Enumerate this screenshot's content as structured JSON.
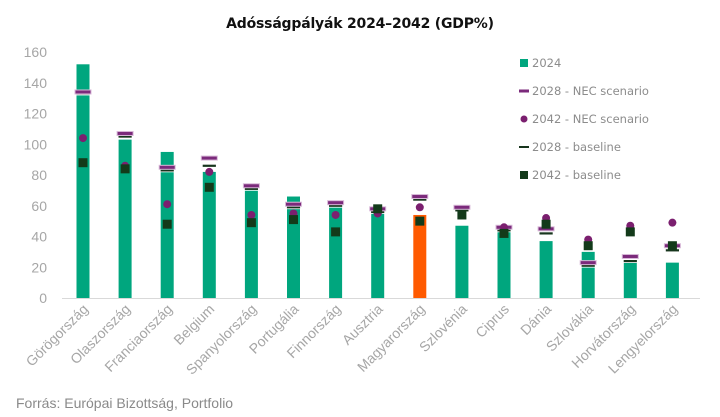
{
  "title": "Adósságpályák 2024–2042 (GDP%)",
  "source": "Forrás: Európai Bizottság, Portfolio",
  "chart_data": {
    "type": "bar",
    "title": "Adósságpályák 2024–2042 (GDP%)",
    "xlabel": "",
    "ylabel": "",
    "ylim": [
      0,
      160
    ],
    "yticks": [
      0,
      20,
      40,
      60,
      80,
      100,
      120,
      140,
      160
    ],
    "grid": false,
    "legend_position": "top-right",
    "categories": [
      "Görögország",
      "Olaszország",
      "Franciaország",
      "Belgium",
      "Spanyolország",
      "Portugália",
      "Finnország",
      "Ausztria",
      "Magyarország",
      "Szlovénia",
      "Ciprus",
      "Dánia",
      "Szlovákia",
      "Horvátország",
      "Lengyelország"
    ],
    "highlight_category": "Magyarország",
    "colors": {
      "bar": "#00a67e",
      "highlight_bar": "#ff5a00",
      "nec_2028": "#7b2a7b",
      "nec_2042": "#7b1f6f",
      "baseline_2028": "#17351d",
      "baseline_2042": "#133a1a"
    },
    "series": [
      {
        "name": "2024",
        "marker": "bar",
        "values": [
          152,
          103,
          95,
          82,
          72,
          66,
          59,
          57,
          54,
          47,
          43,
          37,
          30,
          23,
          23
        ]
      },
      {
        "name": "2028 - NEC scenario",
        "marker": "dash",
        "values": [
          134,
          107,
          85,
          91,
          73,
          61,
          62,
          58,
          66,
          59,
          46,
          45,
          23,
          27,
          34
        ]
      },
      {
        "name": "2042 - NEC scenario",
        "marker": "circle",
        "values": [
          104,
          86,
          61,
          82,
          54,
          55,
          54,
          55,
          59,
          null,
          46,
          52,
          38,
          47,
          49
        ]
      },
      {
        "name": "2028 - baseline",
        "marker": "line",
        "values": [
          133,
          105,
          83,
          86,
          71,
          59,
          60,
          56,
          64,
          57,
          44,
          42,
          21,
          24,
          31
        ]
      },
      {
        "name": "2042 - baseline",
        "marker": "square",
        "values": [
          88,
          84,
          48,
          72,
          49,
          51,
          43,
          58,
          50,
          54,
          42,
          48,
          34,
          43,
          34
        ]
      }
    ]
  }
}
